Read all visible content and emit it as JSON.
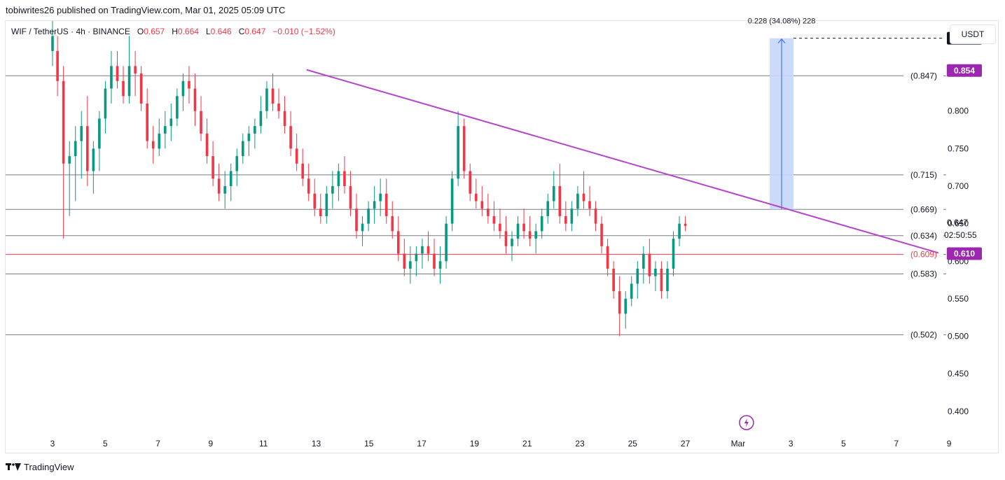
{
  "header": {
    "published": "tobiwrites26 published on TradingView.com, Mar 01, 2025 05:09 UTC"
  },
  "legend": {
    "symbol": "WIF / TetherUS · 4h · BINANCE",
    "o_label": "O",
    "o": "0.657",
    "h_label": "H",
    "h": "0.664",
    "l_label": "L",
    "l": "0.646",
    "c_label": "C",
    "c": "0.647",
    "change": "−0.010 (−1.52%)"
  },
  "currency": "USDT",
  "footer": {
    "brand": "TradingView"
  },
  "colors": {
    "up": "#089981",
    "down": "#f23645",
    "trendline": "#b445c9",
    "projection": "#c6d6fb",
    "projection_line": "#2962ff",
    "support": "#f23645",
    "level": "#787b86"
  },
  "chart_data": {
    "type": "candlestick",
    "ylim": [
      0.37,
      0.92
    ],
    "y_ticks": [
      "0.400",
      "0.450",
      "0.500",
      "0.550",
      "0.600",
      "0.650",
      "0.700",
      "0.750",
      "0.800",
      "0.850"
    ],
    "x_ticks": [
      "3",
      "5",
      "7",
      "9",
      "11",
      "13",
      "15",
      "17",
      "19",
      "21",
      "23",
      "25",
      "27",
      "Mar",
      "3",
      "5",
      "7",
      "9"
    ],
    "levels": [
      {
        "value": 0.847,
        "label": "(0.847)"
      },
      {
        "value": 0.715,
        "label": "(0.715)"
      },
      {
        "value": 0.669,
        "label": "(0.669)"
      },
      {
        "value": 0.634,
        "label": "(0.634)"
      },
      {
        "value": 0.609,
        "label": "(0.609)",
        "support": true
      },
      {
        "value": 0.583,
        "label": "(0.583)"
      },
      {
        "value": 0.502,
        "label": "(0.502)"
      }
    ],
    "price_badges": [
      {
        "value": 0.897,
        "label": "0.897",
        "bg": "#131722"
      },
      {
        "value": 0.854,
        "label": "0.854",
        "bg": "#9c27b0"
      },
      {
        "value": 0.61,
        "label": "0.610",
        "bg": "#9c27b0"
      }
    ],
    "last_price": {
      "value": 0.647,
      "label": "0.647",
      "countdown": "02:50:55"
    },
    "trendline": {
      "start": {
        "day": 5.2,
        "price": 0.855
      },
      "end": {
        "day": 8.6,
        "price": 0.611
      }
    },
    "projection": {
      "from": 0.669,
      "to": 0.897,
      "day_start": 1.2,
      "day_end": 2.1,
      "label": "0.228 (34.08%) 228"
    },
    "candles": [
      [
        2.65,
        0.88,
        0.92,
        0.86,
        0.9
      ],
      [
        2.7,
        0.88,
        0.9,
        0.82,
        0.84
      ],
      [
        2.76,
        0.84,
        0.86,
        0.63,
        0.73
      ],
      [
        2.82,
        0.73,
        0.76,
        0.66,
        0.74
      ],
      [
        2.88,
        0.74,
        0.78,
        0.68,
        0.76
      ],
      [
        2.94,
        0.76,
        0.8,
        0.71,
        0.78
      ],
      [
        3.0,
        0.78,
        0.82,
        0.7,
        0.72
      ],
      [
        3.06,
        0.72,
        0.76,
        0.69,
        0.75
      ],
      [
        3.12,
        0.75,
        0.8,
        0.72,
        0.79
      ],
      [
        3.18,
        0.79,
        0.84,
        0.77,
        0.83
      ],
      [
        3.24,
        0.83,
        0.88,
        0.81,
        0.86
      ],
      [
        3.3,
        0.86,
        0.88,
        0.83,
        0.84
      ],
      [
        3.36,
        0.84,
        0.86,
        0.81,
        0.82
      ],
      [
        3.42,
        0.82,
        0.9,
        0.81,
        0.86
      ],
      [
        3.48,
        0.86,
        0.88,
        0.82,
        0.85
      ],
      [
        3.54,
        0.85,
        0.86,
        0.8,
        0.81
      ],
      [
        3.6,
        0.81,
        0.83,
        0.75,
        0.76
      ],
      [
        3.66,
        0.76,
        0.78,
        0.73,
        0.75
      ],
      [
        3.72,
        0.75,
        0.79,
        0.74,
        0.77
      ],
      [
        3.78,
        0.77,
        0.8,
        0.75,
        0.78
      ],
      [
        3.84,
        0.78,
        0.81,
        0.76,
        0.79
      ],
      [
        3.9,
        0.79,
        0.83,
        0.78,
        0.82
      ],
      [
        3.96,
        0.82,
        0.85,
        0.8,
        0.84
      ],
      [
        4.02,
        0.84,
        0.86,
        0.81,
        0.83
      ],
      [
        4.08,
        0.83,
        0.85,
        0.78,
        0.8
      ],
      [
        4.14,
        0.8,
        0.82,
        0.76,
        0.77
      ],
      [
        4.2,
        0.77,
        0.79,
        0.73,
        0.74
      ],
      [
        4.26,
        0.74,
        0.76,
        0.7,
        0.71
      ],
      [
        4.32,
        0.71,
        0.73,
        0.68,
        0.69
      ],
      [
        4.38,
        0.69,
        0.72,
        0.67,
        0.7
      ],
      [
        4.44,
        0.7,
        0.73,
        0.68,
        0.72
      ],
      [
        4.5,
        0.72,
        0.75,
        0.7,
        0.74
      ],
      [
        4.56,
        0.74,
        0.77,
        0.73,
        0.76
      ],
      [
        4.62,
        0.76,
        0.78,
        0.74,
        0.77
      ],
      [
        4.68,
        0.77,
        0.79,
        0.75,
        0.78
      ],
      [
        4.74,
        0.78,
        0.82,
        0.77,
        0.8
      ],
      [
        4.8,
        0.8,
        0.84,
        0.79,
        0.83
      ],
      [
        4.86,
        0.83,
        0.85,
        0.8,
        0.81
      ],
      [
        4.92,
        0.81,
        0.83,
        0.79,
        0.8
      ],
      [
        4.98,
        0.8,
        0.82,
        0.77,
        0.78
      ],
      [
        5.04,
        0.78,
        0.8,
        0.74,
        0.75
      ],
      [
        5.1,
        0.75,
        0.77,
        0.72,
        0.73
      ],
      [
        5.16,
        0.73,
        0.75,
        0.7,
        0.71
      ],
      [
        5.22,
        0.71,
        0.73,
        0.68,
        0.69
      ],
      [
        5.28,
        0.69,
        0.71,
        0.66,
        0.67
      ],
      [
        5.34,
        0.67,
        0.69,
        0.65,
        0.66
      ],
      [
        5.4,
        0.66,
        0.7,
        0.65,
        0.69
      ],
      [
        5.46,
        0.69,
        0.72,
        0.67,
        0.7
      ],
      [
        5.52,
        0.7,
        0.73,
        0.68,
        0.72
      ],
      [
        5.58,
        0.72,
        0.74,
        0.69,
        0.7
      ],
      [
        5.64,
        0.7,
        0.72,
        0.66,
        0.67
      ],
      [
        5.7,
        0.67,
        0.69,
        0.63,
        0.64
      ],
      [
        5.76,
        0.64,
        0.66,
        0.62,
        0.65
      ],
      [
        5.82,
        0.65,
        0.68,
        0.64,
        0.67
      ],
      [
        5.88,
        0.67,
        0.7,
        0.65,
        0.68
      ],
      [
        5.94,
        0.68,
        0.71,
        0.66,
        0.69
      ],
      [
        6.0,
        0.69,
        0.71,
        0.65,
        0.66
      ],
      [
        6.06,
        0.66,
        0.68,
        0.63,
        0.64
      ],
      [
        6.12,
        0.64,
        0.66,
        0.6,
        0.61
      ],
      [
        6.18,
        0.61,
        0.63,
        0.58,
        0.59
      ],
      [
        6.24,
        0.59,
        0.62,
        0.57,
        0.6
      ],
      [
        6.3,
        0.6,
        0.62,
        0.58,
        0.61
      ],
      [
        6.36,
        0.61,
        0.63,
        0.59,
        0.62
      ],
      [
        6.42,
        0.62,
        0.64,
        0.6,
        0.61
      ],
      [
        6.48,
        0.61,
        0.63,
        0.58,
        0.59
      ],
      [
        6.54,
        0.59,
        0.62,
        0.57,
        0.6
      ],
      [
        6.6,
        0.6,
        0.66,
        0.59,
        0.65
      ],
      [
        6.66,
        0.65,
        0.72,
        0.64,
        0.71
      ],
      [
        6.72,
        0.71,
        0.8,
        0.7,
        0.78
      ],
      [
        6.78,
        0.78,
        0.79,
        0.71,
        0.72
      ],
      [
        6.84,
        0.72,
        0.73,
        0.68,
        0.69
      ],
      [
        6.9,
        0.69,
        0.71,
        0.67,
        0.68
      ],
      [
        6.96,
        0.68,
        0.7,
        0.66,
        0.67
      ],
      [
        7.02,
        0.67,
        0.69,
        0.65,
        0.66
      ],
      [
        7.08,
        0.66,
        0.68,
        0.64,
        0.65
      ],
      [
        7.14,
        0.65,
        0.67,
        0.63,
        0.64
      ],
      [
        7.2,
        0.64,
        0.66,
        0.61,
        0.62
      ],
      [
        7.26,
        0.62,
        0.64,
        0.6,
        0.63
      ],
      [
        7.32,
        0.63,
        0.66,
        0.62,
        0.65
      ],
      [
        7.38,
        0.65,
        0.67,
        0.63,
        0.64
      ],
      [
        7.44,
        0.64,
        0.66,
        0.62,
        0.63
      ],
      [
        7.5,
        0.63,
        0.65,
        0.61,
        0.64
      ],
      [
        7.56,
        0.64,
        0.67,
        0.63,
        0.66
      ],
      [
        7.62,
        0.66,
        0.69,
        0.65,
        0.68
      ],
      [
        7.68,
        0.68,
        0.72,
        0.67,
        0.7
      ],
      [
        7.74,
        0.7,
        0.73,
        0.65,
        0.66
      ],
      [
        7.8,
        0.66,
        0.68,
        0.64,
        0.65
      ],
      [
        7.86,
        0.65,
        0.68,
        0.64,
        0.67
      ],
      [
        7.92,
        0.67,
        0.7,
        0.66,
        0.69
      ],
      [
        7.98,
        0.69,
        0.72,
        0.67,
        0.68
      ],
      [
        8.04,
        0.68,
        0.7,
        0.66,
        0.67
      ],
      [
        8.1,
        0.67,
        0.68,
        0.64,
        0.65
      ],
      [
        8.16,
        0.65,
        0.66,
        0.61,
        0.62
      ],
      [
        8.22,
        0.62,
        0.63,
        0.58,
        0.59
      ],
      [
        8.28,
        0.59,
        0.6,
        0.55,
        0.56
      ],
      [
        8.34,
        0.56,
        0.58,
        0.5,
        0.53
      ],
      [
        8.4,
        0.53,
        0.56,
        0.51,
        0.55
      ],
      [
        8.46,
        0.55,
        0.58,
        0.54,
        0.57
      ],
      [
        8.52,
        0.57,
        0.6,
        0.55,
        0.59
      ],
      [
        8.58,
        0.59,
        0.62,
        0.57,
        0.61
      ],
      [
        8.64,
        0.61,
        0.63,
        0.57,
        0.58
      ],
      [
        8.7,
        0.58,
        0.6,
        0.56,
        0.59
      ],
      [
        8.76,
        0.59,
        0.6,
        0.55,
        0.56
      ],
      [
        8.82,
        0.56,
        0.6,
        0.55,
        0.59
      ],
      [
        8.88,
        0.59,
        0.64,
        0.58,
        0.63
      ],
      [
        8.94,
        0.63,
        0.66,
        0.62,
        0.65
      ],
      [
        9.0,
        0.65,
        0.66,
        0.64,
        0.647
      ]
    ]
  }
}
